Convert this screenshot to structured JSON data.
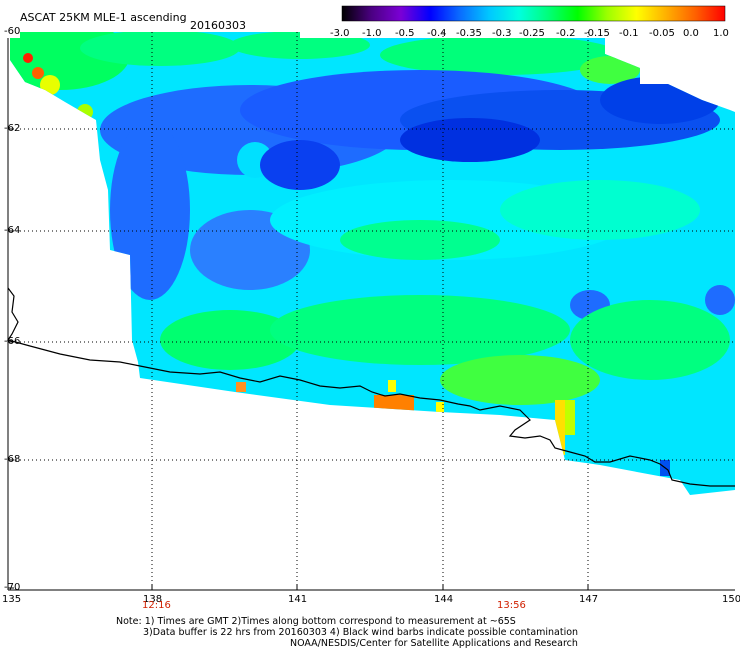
{
  "header": {
    "title": "ASCAT 25KM MLE-1 ascending",
    "date": "20160303"
  },
  "colorbar": {
    "labels": [
      "-3.0",
      "-1.0",
      "-0.5",
      "-0.4",
      "-0.35",
      "-0.3",
      "-0.25",
      "-0.2",
      "-0.15",
      "-0.1",
      "-0.05",
      "0.0",
      "1.0"
    ],
    "colors": [
      "#000000",
      "#4b0082",
      "#7b00d6",
      "#0000ff",
      "#0a6cff",
      "#00c8ff",
      "#00ffe0",
      "#00ff7a",
      "#00ff00",
      "#9cff00",
      "#ffff00",
      "#ffb000",
      "#ff6000",
      "#ff0000"
    ]
  },
  "axes": {
    "lon_ticks": [
      "135",
      "138",
      "141",
      "144",
      "147",
      "150"
    ],
    "lat_ticks": [
      "-60",
      "-62",
      "-64",
      "-66",
      "-68",
      "-70"
    ],
    "times": [
      "12:16",
      "13:56"
    ]
  },
  "footer": {
    "line1": "Note: 1) Times are GMT 2)Times along bottom correspond to measurement at ~65S",
    "line2": "3)Data buffer is 22 hrs from 20160303 4) Black wind barbs indicate possible contamination",
    "line3": "NOAA/NESDIS/Center for Satellite Applications and Research"
  }
}
